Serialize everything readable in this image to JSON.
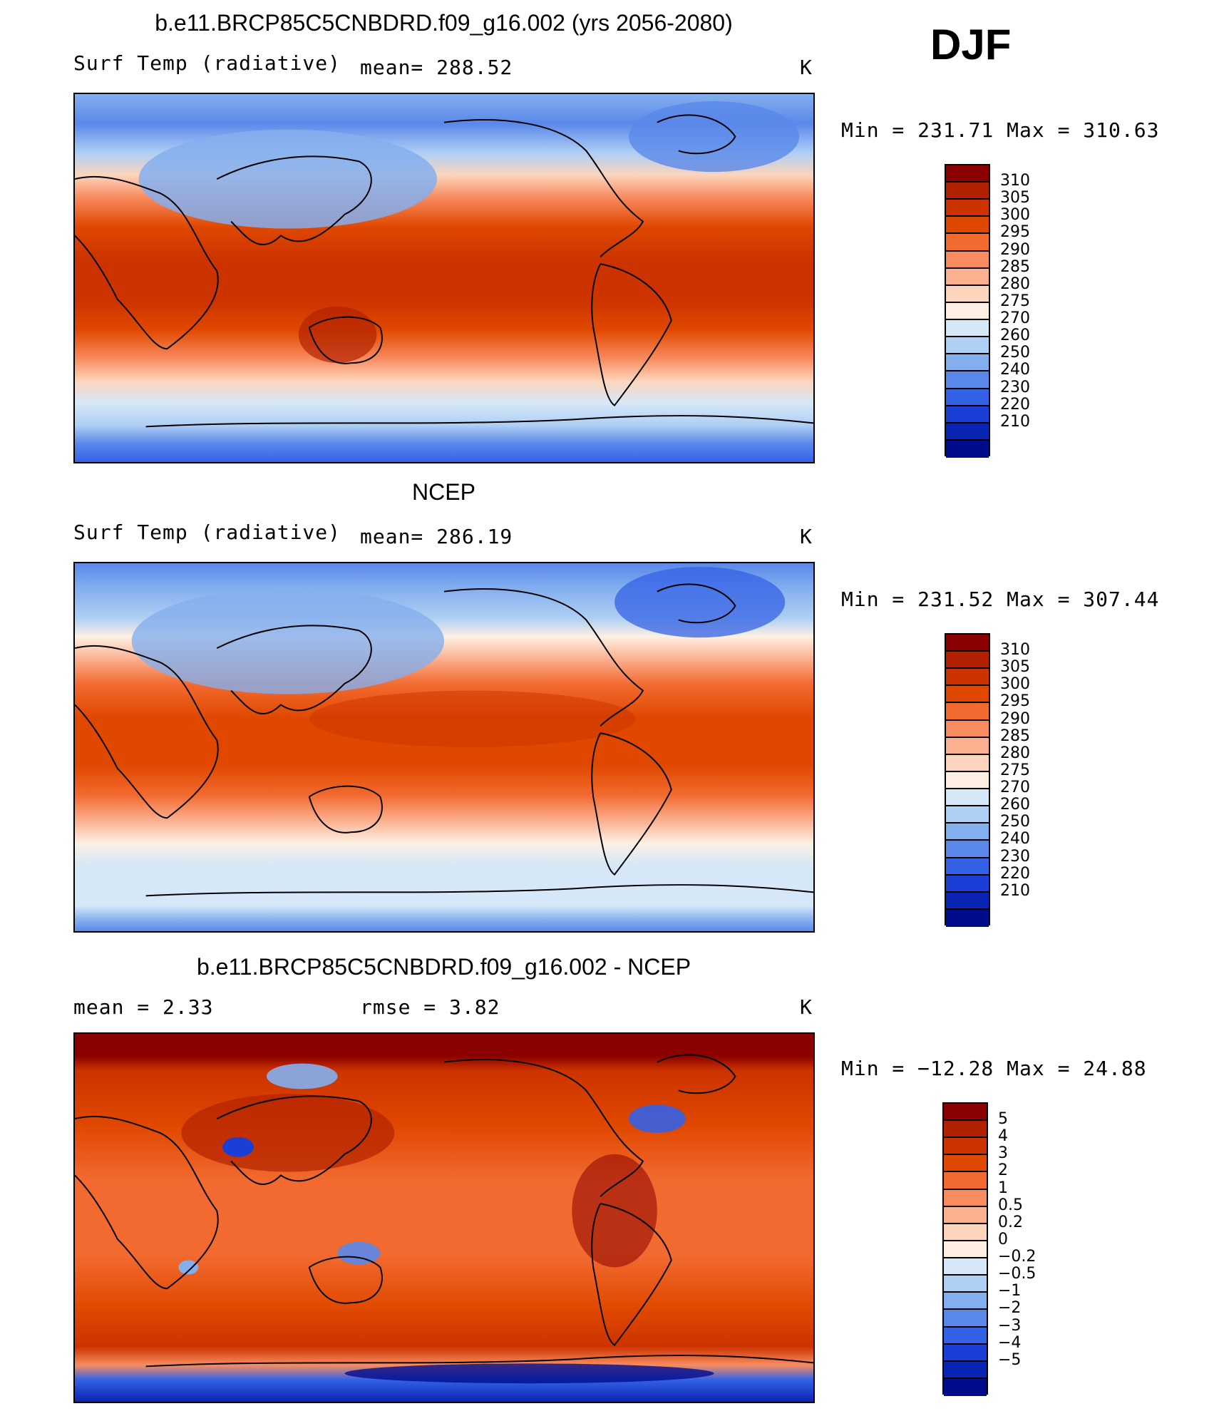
{
  "header": {
    "season": "DJF"
  },
  "panels": [
    {
      "title": "b.e11.BRCP85C5CNBDRD.f09_g16.002 (yrs 2056-2080)",
      "left_label": "Surf Temp (radiative)",
      "center_label": "mean= 288.52",
      "units": "K",
      "minmax": "Min = 231.71 Max = 310.63",
      "colorbar": {
        "labels": [
          "310",
          "305",
          "300",
          "295",
          "290",
          "285",
          "280",
          "275",
          "270",
          "260",
          "250",
          "240",
          "230",
          "220",
          "210"
        ],
        "colors": [
          "#8b0000",
          "#b22200",
          "#cc3300",
          "#e04800",
          "#f26a30",
          "#f88c60",
          "#fbb090",
          "#fcd5bc",
          "#fdf0e2",
          "#d6e8f8",
          "#afcff4",
          "#84afee",
          "#5a88ea",
          "#3462e6",
          "#1a3ed6",
          "#0a24b4",
          "#000c8c"
        ]
      }
    },
    {
      "title": "NCEP",
      "left_label": "Surf Temp (radiative)",
      "center_label": "mean= 286.19",
      "units": "K",
      "minmax": "Min = 231.52 Max = 307.44",
      "colorbar": {
        "labels": [
          "310",
          "305",
          "300",
          "295",
          "290",
          "285",
          "280",
          "275",
          "270",
          "260",
          "250",
          "240",
          "230",
          "220",
          "210"
        ],
        "colors": [
          "#8b0000",
          "#b22200",
          "#cc3300",
          "#e04800",
          "#f26a30",
          "#f88c60",
          "#fbb090",
          "#fcd5bc",
          "#fdf0e2",
          "#d6e8f8",
          "#afcff4",
          "#84afee",
          "#5a88ea",
          "#3462e6",
          "#1a3ed6",
          "#0a24b4",
          "#000c8c"
        ]
      }
    },
    {
      "title": "b.e11.BRCP85C5CNBDRD.f09_g16.002 - NCEP",
      "left_label": "mean =    2.33",
      "center_label": "rmse =    3.82",
      "units": "K",
      "minmax": "Min = −12.28 Max =   24.88",
      "colorbar": {
        "labels": [
          "5",
          "4",
          "3",
          "2",
          "1",
          "0.5",
          "0.2",
          "0",
          "−0.2",
          "−0.5",
          "−1",
          "−2",
          "−3",
          "−4",
          "−5"
        ],
        "colors": [
          "#8b0000",
          "#b22200",
          "#cc3300",
          "#e04800",
          "#f26a30",
          "#f88c60",
          "#fbb090",
          "#fcd5bc",
          "#fdf0e2",
          "#d6e8f8",
          "#afcff4",
          "#84afee",
          "#5a88ea",
          "#3462e6",
          "#1a3ed6",
          "#0a24b4",
          "#000c8c"
        ]
      }
    }
  ]
}
